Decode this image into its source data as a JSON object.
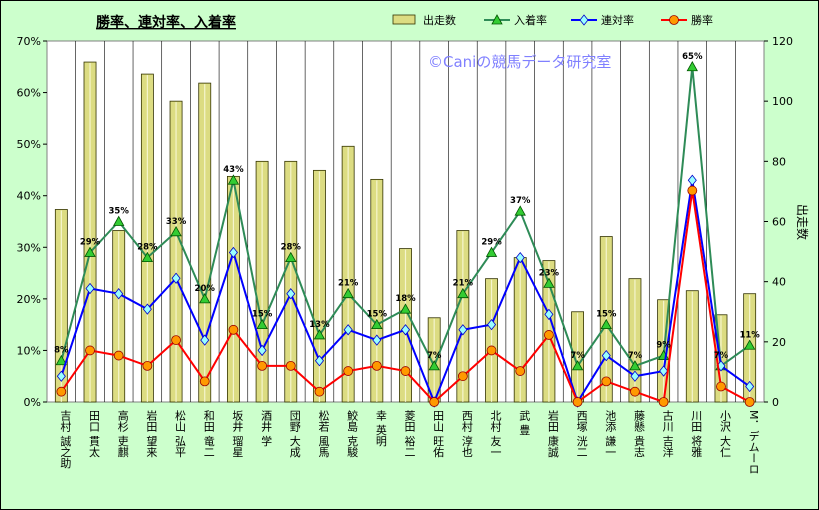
{
  "chart_data": {
    "type": "bar+line",
    "title": "勝率、連対率、入着率",
    "watermark": "©Caniの競馬データ研究室",
    "ylabel_right": "出走数",
    "ylim_left": [
      0,
      70
    ],
    "ylim_right": [
      0,
      120
    ],
    "left_ticks": [
      "0%",
      "10%",
      "20%",
      "30%",
      "40%",
      "50%",
      "60%",
      "70%"
    ],
    "right_ticks": [
      "0",
      "20",
      "40",
      "60",
      "80",
      "100",
      "120"
    ],
    "categories": [
      "吉村 誠之助",
      "田口 貫太",
      "高杉 吏麒",
      "岩田 望来",
      "松山 弘平",
      "和田 竜二",
      "坂井 瑠星",
      "酒井 学",
      "団野 大成",
      "松若 風馬",
      "鮫島 克駿",
      "幸 英明",
      "菱田 裕二",
      "田山 旺佑",
      "西村 淳也",
      "北村 友一",
      "武 豊",
      "岩田 康誠",
      "西塚 洸二",
      "池添 謙一",
      "藤懸 貴志",
      "古川 吉洋",
      "川田 将雅",
      "小沢 大仁",
      "M．デムーロ"
    ],
    "series": [
      {
        "name": "出走数",
        "kind": "bar",
        "axis": "right",
        "color": "#dcdc82",
        "values": [
          64,
          113,
          57,
          109,
          100,
          106,
          75,
          80,
          80,
          77,
          85,
          74,
          51,
          28,
          57,
          41,
          48,
          47,
          30,
          55,
          41,
          34,
          37,
          29,
          36
        ]
      },
      {
        "name": "入着率",
        "kind": "line",
        "axis": "left",
        "color": "#2e8b57",
        "marker": "triangle",
        "values": [
          8,
          29,
          35,
          28,
          33,
          20,
          43,
          15,
          28,
          13,
          21,
          15,
          18,
          7,
          21,
          29,
          37,
          23,
          7,
          15,
          7,
          9,
          65,
          7,
          11
        ]
      },
      {
        "name": "連対率",
        "kind": "line",
        "axis": "left",
        "color": "#0000ff",
        "marker": "diamond",
        "values": [
          5,
          22,
          21,
          18,
          24,
          12,
          29,
          10,
          21,
          8,
          14,
          12,
          14,
          0,
          14,
          15,
          28,
          17,
          0,
          9,
          5,
          6,
          43,
          7,
          3
        ]
      },
      {
        "name": "勝率",
        "kind": "line",
        "axis": "left",
        "color": "#ff0000",
        "marker": "circle",
        "values": [
          2,
          10,
          9,
          7,
          12,
          4,
          14,
          7,
          7,
          2,
          6,
          7,
          6,
          0,
          5,
          10,
          6,
          13,
          0,
          4,
          2,
          0,
          41,
          3,
          0
        ]
      }
    ],
    "point_labels": {
      "series": "入着率",
      "values": [
        "8%",
        "29%",
        "35%",
        "28%",
        "33%",
        "20%",
        "43%",
        "15%",
        "28%",
        "13%",
        "21%",
        "15%",
        "18%",
        "7%",
        "21%",
        "29%",
        "37%",
        "23%",
        "7%",
        "15%",
        "7%",
        "9%",
        "65%",
        "7%",
        "11%"
      ]
    },
    "legend": [
      "出走数",
      "入着率",
      "連対率",
      "勝率"
    ],
    "legend_position": "top-right",
    "grid": "vertical"
  }
}
